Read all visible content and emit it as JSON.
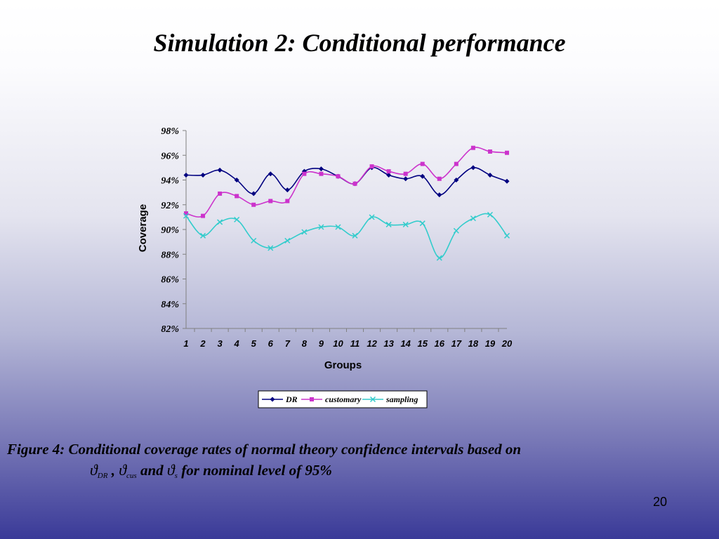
{
  "slide": {
    "title": "Simulation 2: Conditional performance",
    "page_number": "20"
  },
  "caption": {
    "line1": "Figure 4: Conditional coverage rates of normal theory confidence intervals based on",
    "symbols": [
      {
        "glyph": "ϑ",
        "subscript": "DR"
      },
      {
        "glyph": "ϑ",
        "subscript": "cus"
      },
      {
        "glyph": "ϑ",
        "subscript": "s"
      }
    ],
    "sep1": ",",
    "sep2": "and",
    "tail": "for nominal level of 95%"
  },
  "colors": {
    "dr": "#000080",
    "customary": "#cc33cc",
    "sampling": "#33cccc"
  },
  "chart_data": {
    "type": "line",
    "title": "",
    "xlabel": "Groups",
    "ylabel": "Coverage",
    "x": [
      1,
      2,
      3,
      4,
      5,
      6,
      7,
      8,
      9,
      10,
      11,
      12,
      13,
      14,
      15,
      16,
      17,
      18,
      19,
      20
    ],
    "ylim": [
      82,
      98
    ],
    "yticks": [
      82,
      84,
      86,
      88,
      90,
      92,
      94,
      96,
      98
    ],
    "ytick_labels": [
      "82%",
      "84%",
      "86%",
      "88%",
      "90%",
      "92%",
      "94%",
      "96%",
      "98%"
    ],
    "legend_position": "bottom-center",
    "grid": false,
    "series": [
      {
        "name": "DR",
        "key": "dr",
        "marker": "diamond",
        "values": [
          94.4,
          94.4,
          94.8,
          94.0,
          92.9,
          94.5,
          93.2,
          94.7,
          94.9,
          94.3,
          93.7,
          95.0,
          94.4,
          94.1,
          94.3,
          92.8,
          94.0,
          95.0,
          94.4,
          93.9
        ]
      },
      {
        "name": "customary",
        "key": "customary",
        "marker": "square",
        "values": [
          91.3,
          91.1,
          92.9,
          92.7,
          92.0,
          92.3,
          92.3,
          94.5,
          94.5,
          94.3,
          93.7,
          95.1,
          94.7,
          94.5,
          95.3,
          94.1,
          95.3,
          96.6,
          96.3,
          96.2
        ]
      },
      {
        "name": "sampling",
        "key": "sampling",
        "marker": "x",
        "values": [
          91.1,
          89.5,
          90.6,
          90.8,
          89.1,
          88.5,
          89.1,
          89.8,
          90.2,
          90.2,
          89.5,
          91.0,
          90.4,
          90.4,
          90.5,
          87.7,
          89.9,
          90.9,
          91.2,
          89.5
        ]
      }
    ]
  }
}
